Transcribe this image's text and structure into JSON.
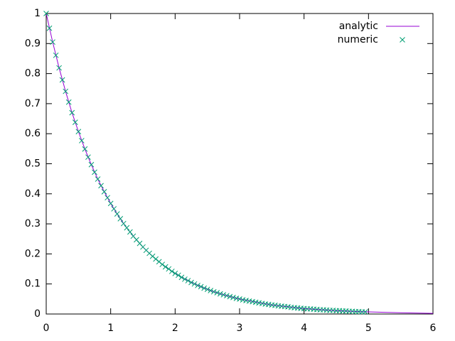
{
  "chart_data": {
    "type": "line",
    "xlim": [
      0,
      6
    ],
    "xticks": [
      0,
      1,
      2,
      3,
      4,
      5,
      6
    ],
    "ylim": [
      0,
      1
    ],
    "yticks": [
      0,
      0.1,
      0.2,
      0.3,
      0.4,
      0.5,
      0.6,
      0.7,
      0.8,
      0.9,
      1
    ],
    "legend": "top-right",
    "series": [
      {
        "name": "analytic",
        "color": "#9400d3",
        "style": "line",
        "x": [
          0,
          0.1,
          0.2,
          0.3,
          0.4,
          0.5,
          0.6,
          0.7,
          0.8,
          0.9,
          1,
          1.1,
          1.2,
          1.3,
          1.4,
          1.5,
          1.6,
          1.7,
          1.8,
          1.9,
          2,
          2.2,
          2.4,
          2.6,
          2.8,
          3,
          3.5,
          4,
          4.5,
          5,
          5.5,
          6
        ],
        "values": [
          1,
          0.905,
          0.819,
          0.741,
          0.67,
          0.607,
          0.549,
          0.497,
          0.449,
          0.407,
          0.368,
          0.333,
          0.301,
          0.273,
          0.247,
          0.223,
          0.202,
          0.183,
          0.165,
          0.15,
          0.135,
          0.111,
          0.091,
          0.074,
          0.061,
          0.05,
          0.03,
          0.018,
          0.011,
          0.007,
          0.004,
          0.002
        ]
      },
      {
        "name": "numeric",
        "color": "#009e73",
        "style": "points",
        "x": [
          0,
          0.05,
          0.1,
          0.15,
          0.2,
          0.25,
          0.3,
          0.35,
          0.4,
          0.45,
          0.5,
          0.55,
          0.6,
          0.65,
          0.7,
          0.75,
          0.8,
          0.85,
          0.9,
          0.95,
          1,
          1.05,
          1.1,
          1.15,
          1.2,
          1.25,
          1.3,
          1.35,
          1.4,
          1.45,
          1.5,
          1.55,
          1.6,
          1.65,
          1.7,
          1.75,
          1.8,
          1.85,
          1.9,
          1.95,
          2,
          2.05,
          2.1,
          2.15,
          2.2,
          2.25,
          2.3,
          2.35,
          2.4,
          2.45,
          2.5,
          2.55,
          2.6,
          2.65,
          2.7,
          2.75,
          2.8,
          2.85,
          2.9,
          2.95,
          3,
          3.05,
          3.1,
          3.15,
          3.2,
          3.25,
          3.3,
          3.35,
          3.4,
          3.45,
          3.5,
          3.55,
          3.6,
          3.65,
          3.7,
          3.75,
          3.8,
          3.85,
          3.9,
          3.95,
          4,
          4.05,
          4.1,
          4.15,
          4.2,
          4.25,
          4.3,
          4.35,
          4.4,
          4.45,
          4.5,
          4.55,
          4.6,
          4.65,
          4.7,
          4.75,
          4.8,
          4.85,
          4.9,
          4.95
        ],
        "values": [
          1,
          0.951,
          0.905,
          0.861,
          0.819,
          0.779,
          0.741,
          0.705,
          0.67,
          0.638,
          0.607,
          0.577,
          0.549,
          0.522,
          0.497,
          0.472,
          0.449,
          0.427,
          0.407,
          0.387,
          0.368,
          0.35,
          0.333,
          0.317,
          0.301,
          0.287,
          0.273,
          0.259,
          0.247,
          0.235,
          0.223,
          0.212,
          0.202,
          0.192,
          0.183,
          0.174,
          0.165,
          0.157,
          0.15,
          0.142,
          0.135,
          0.129,
          0.122,
          0.116,
          0.111,
          0.105,
          0.1,
          0.095,
          0.091,
          0.086,
          0.082,
          0.078,
          0.074,
          0.071,
          0.067,
          0.064,
          0.061,
          0.058,
          0.055,
          0.052,
          0.05,
          0.047,
          0.045,
          0.043,
          0.041,
          0.039,
          0.037,
          0.035,
          0.033,
          0.032,
          0.03,
          0.029,
          0.027,
          0.026,
          0.025,
          0.024,
          0.022,
          0.021,
          0.02,
          0.019,
          0.018,
          0.017,
          0.017,
          0.016,
          0.015,
          0.014,
          0.014,
          0.013,
          0.012,
          0.012,
          0.011,
          0.011,
          0.01,
          0.01,
          0.009,
          0.009,
          0.008,
          0.008,
          0.007,
          0.007
        ]
      }
    ]
  }
}
